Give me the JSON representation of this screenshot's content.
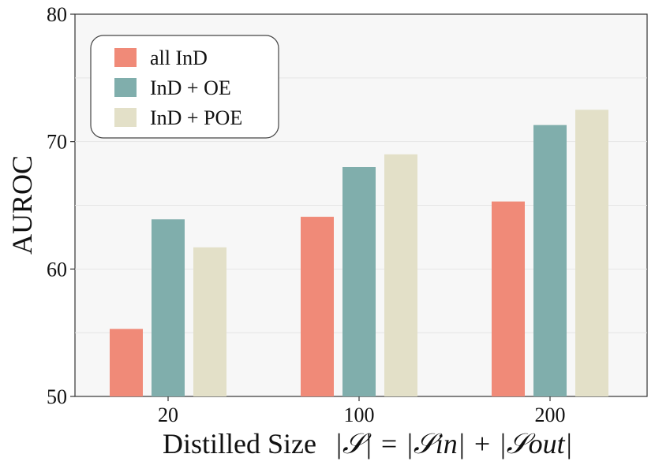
{
  "chart_data": {
    "type": "bar",
    "title": "",
    "xlabel_prefix": "Distilled Size",
    "xlabel_math": "|𝒮| = |𝒮in| + |𝒮out|",
    "ylabel": "AUROC",
    "categories": [
      "20",
      "100",
      "200"
    ],
    "series": [
      {
        "name": "all InD",
        "color": "#f08a78",
        "values": [
          55.3,
          64.1,
          65.3
        ]
      },
      {
        "name": "InD + OE",
        "color": "#80aeac",
        "values": [
          63.9,
          68.0,
          71.3
        ]
      },
      {
        "name": "InD + POE",
        "color": "#e3e0c8",
        "values": [
          61.7,
          69.0,
          72.5
        ]
      }
    ],
    "ylim": [
      50,
      80
    ],
    "yticks": [
      50,
      60,
      70,
      80
    ],
    "grid": true,
    "legend_position": "top-left"
  }
}
